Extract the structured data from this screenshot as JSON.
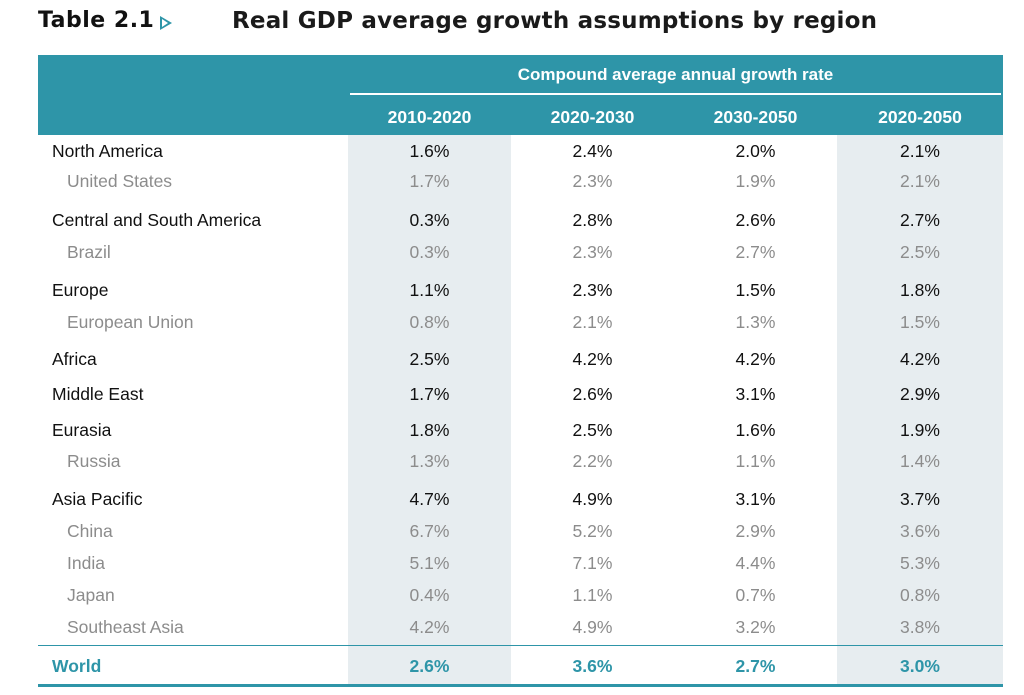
{
  "title": {
    "number": "Table 2.1",
    "text": "Real GDP average growth assumptions by region"
  },
  "header": {
    "super": "Compound average annual growth rate",
    "columns": [
      "2010-2020",
      "2020-2030",
      "2030-2050",
      "2020-2050"
    ]
  },
  "rows": [
    {
      "label": "North America",
      "values": [
        "1.6%",
        "2.4%",
        "2.0%",
        "2.1%"
      ]
    },
    {
      "label": "United States",
      "values": [
        "1.7%",
        "2.3%",
        "1.9%",
        "2.1%"
      ]
    },
    {
      "label": "Central and South America",
      "values": [
        "0.3%",
        "2.8%",
        "2.6%",
        "2.7%"
      ]
    },
    {
      "label": "Brazil",
      "values": [
        "0.3%",
        "2.3%",
        "2.7%",
        "2.5%"
      ]
    },
    {
      "label": "Europe",
      "values": [
        "1.1%",
        "2.3%",
        "1.5%",
        "1.8%"
      ]
    },
    {
      "label": "European Union",
      "values": [
        "0.8%",
        "2.1%",
        "1.3%",
        "1.5%"
      ]
    },
    {
      "label": "Africa",
      "values": [
        "2.5%",
        "4.2%",
        "4.2%",
        "4.2%"
      ]
    },
    {
      "label": "Middle East",
      "values": [
        "1.7%",
        "2.6%",
        "3.1%",
        "2.9%"
      ]
    },
    {
      "label": "Eurasia",
      "values": [
        "1.8%",
        "2.5%",
        "1.6%",
        "1.9%"
      ]
    },
    {
      "label": "Russia",
      "values": [
        "1.3%",
        "2.2%",
        "1.1%",
        "1.4%"
      ]
    },
    {
      "label": "Asia Pacific",
      "values": [
        "4.7%",
        "4.9%",
        "3.1%",
        "3.7%"
      ]
    },
    {
      "label": "China",
      "values": [
        "6.7%",
        "5.2%",
        "2.9%",
        "3.6%"
      ]
    },
    {
      "label": "India",
      "values": [
        "5.1%",
        "7.1%",
        "4.4%",
        "5.3%"
      ]
    },
    {
      "label": "Japan",
      "values": [
        "0.4%",
        "1.1%",
        "0.7%",
        "0.8%"
      ]
    },
    {
      "label": "Southeast Asia",
      "values": [
        "4.2%",
        "4.9%",
        "3.2%",
        "3.8%"
      ]
    },
    {
      "label": "World",
      "values": [
        "2.6%",
        "3.6%",
        "2.7%",
        "3.0%"
      ]
    }
  ],
  "colors": {
    "accent": "#2e95a8",
    "shade": "#e7edf0",
    "sub_text": "#8c8c8c"
  },
  "icons": {
    "title_marker": "triangle-right-icon"
  }
}
